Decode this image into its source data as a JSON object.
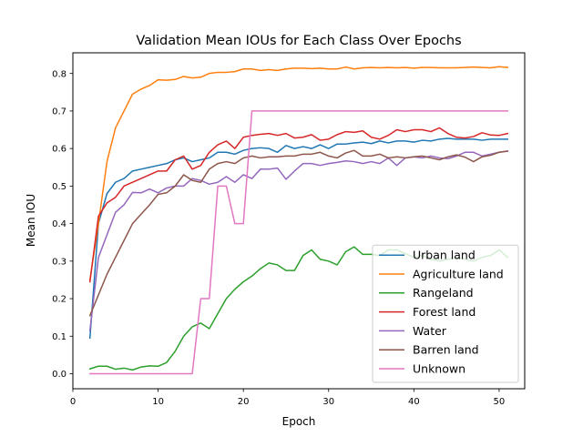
{
  "chart_data": {
    "type": "line",
    "title": "Validation Mean IOUs for Each Class Over Epochs",
    "xlabel": "Epoch",
    "ylabel": "Mean IOU",
    "xlim": [
      0,
      53
    ],
    "ylim": [
      -0.04,
      0.855
    ],
    "xticks": [
      "0",
      "10",
      "20",
      "30",
      "40",
      "50"
    ],
    "yticks": [
      "0.0",
      "0.1",
      "0.2",
      "0.3",
      "0.4",
      "0.5",
      "0.6",
      "0.7",
      "0.8"
    ],
    "grid": false,
    "legend_position": "lower-right",
    "x": [
      2,
      3,
      4,
      5,
      6,
      7,
      8,
      9,
      10,
      11,
      12,
      13,
      14,
      15,
      16,
      17,
      18,
      19,
      20,
      21,
      22,
      23,
      24,
      25,
      26,
      27,
      28,
      29,
      30,
      31,
      32,
      33,
      34,
      35,
      36,
      37,
      38,
      39,
      40,
      41,
      42,
      43,
      44,
      45,
      46,
      47,
      48,
      49,
      50,
      51
    ],
    "series": [
      {
        "name": "Urban land",
        "color": "#1f77b4",
        "values": [
          0.095,
          0.4,
          0.48,
          0.51,
          0.52,
          0.54,
          0.545,
          0.55,
          0.555,
          0.56,
          0.57,
          0.575,
          0.565,
          0.57,
          0.575,
          0.59,
          0.59,
          0.585,
          0.595,
          0.6,
          0.602,
          0.6,
          0.59,
          0.608,
          0.6,
          0.605,
          0.6,
          0.61,
          0.6,
          0.612,
          0.612,
          0.615,
          0.617,
          0.613,
          0.62,
          0.615,
          0.62,
          0.62,
          0.617,
          0.622,
          0.62,
          0.625,
          0.627,
          0.625,
          0.625,
          0.625,
          0.622,
          0.625,
          0.625,
          0.625
        ]
      },
      {
        "name": "Agriculture land",
        "color": "#ff7f0e",
        "values": [
          0.25,
          0.4,
          0.565,
          0.655,
          0.7,
          0.745,
          0.758,
          0.768,
          0.783,
          0.782,
          0.784,
          0.792,
          0.788,
          0.79,
          0.8,
          0.803,
          0.803,
          0.805,
          0.812,
          0.812,
          0.808,
          0.81,
          0.808,
          0.812,
          0.814,
          0.814,
          0.813,
          0.814,
          0.812,
          0.812,
          0.817,
          0.812,
          0.815,
          0.816,
          0.815,
          0.816,
          0.815,
          0.816,
          0.814,
          0.816,
          0.816,
          0.815,
          0.815,
          0.815,
          0.816,
          0.817,
          0.816,
          0.815,
          0.818,
          0.816
        ]
      },
      {
        "name": "Rangeland",
        "color": "#2ca02c",
        "values": [
          0.013,
          0.02,
          0.02,
          0.012,
          0.015,
          0.01,
          0.018,
          0.021,
          0.02,
          0.03,
          0.06,
          0.1,
          0.125,
          0.135,
          0.12,
          0.16,
          0.2,
          0.225,
          0.245,
          0.26,
          0.28,
          0.295,
          0.29,
          0.275,
          0.275,
          0.315,
          0.33,
          0.305,
          0.3,
          0.29,
          0.325,
          0.338,
          0.318,
          0.318,
          0.315,
          0.33,
          0.33,
          0.32,
          0.31,
          0.315,
          0.305,
          0.3,
          0.305,
          0.31,
          0.305,
          0.3,
          0.31,
          0.315,
          0.33,
          0.31
        ]
      },
      {
        "name": "Forest land",
        "color": "#d62728",
        "values": [
          0.245,
          0.42,
          0.455,
          0.47,
          0.5,
          0.51,
          0.52,
          0.53,
          0.54,
          0.54,
          0.57,
          0.58,
          0.545,
          0.555,
          0.59,
          0.61,
          0.62,
          0.6,
          0.63,
          0.635,
          0.638,
          0.64,
          0.635,
          0.64,
          0.628,
          0.63,
          0.637,
          0.622,
          0.625,
          0.637,
          0.645,
          0.643,
          0.647,
          0.63,
          0.625,
          0.635,
          0.65,
          0.645,
          0.65,
          0.65,
          0.645,
          0.655,
          0.64,
          0.63,
          0.628,
          0.632,
          0.642,
          0.636,
          0.635,
          0.64
        ]
      },
      {
        "name": "Water",
        "color": "#9467bd",
        "values": [
          0.115,
          0.31,
          0.37,
          0.43,
          0.45,
          0.483,
          0.482,
          0.492,
          0.482,
          0.495,
          0.5,
          0.5,
          0.52,
          0.515,
          0.505,
          0.51,
          0.525,
          0.51,
          0.53,
          0.52,
          0.545,
          0.545,
          0.548,
          0.518,
          0.54,
          0.56,
          0.56,
          0.555,
          0.56,
          0.563,
          0.567,
          0.565,
          0.56,
          0.565,
          0.56,
          0.575,
          0.555,
          0.575,
          0.578,
          0.575,
          0.58,
          0.575,
          0.573,
          0.58,
          0.59,
          0.59,
          0.58,
          0.585,
          0.59,
          0.593
        ]
      },
      {
        "name": "Barren land",
        "color": "#8c564b",
        "values": [
          0.155,
          0.21,
          0.265,
          0.31,
          0.355,
          0.4,
          0.425,
          0.45,
          0.478,
          0.482,
          0.5,
          0.53,
          0.515,
          0.51,
          0.545,
          0.56,
          0.565,
          0.56,
          0.575,
          0.58,
          0.575,
          0.578,
          0.578,
          0.58,
          0.58,
          0.585,
          0.585,
          0.59,
          0.58,
          0.575,
          0.588,
          0.595,
          0.58,
          0.58,
          0.585,
          0.575,
          0.578,
          0.575,
          0.578,
          0.58,
          0.575,
          0.57,
          0.578,
          0.583,
          0.577,
          0.565,
          0.578,
          0.582,
          0.59,
          0.593
        ]
      },
      {
        "name": "Unknown",
        "color": "#e377c2",
        "values": [
          0,
          0,
          0,
          0,
          0,
          0,
          0,
          0,
          0,
          0,
          0,
          0,
          0,
          0.2,
          0.2,
          0.5,
          0.5,
          0.4,
          0.4,
          0.7,
          0.7,
          0.7,
          0.7,
          0.7,
          0.7,
          0.7,
          0.7,
          0.7,
          0.7,
          0.7,
          0.7,
          0.7,
          0.7,
          0.7,
          0.7,
          0.7,
          0.7,
          0.7,
          0.7,
          0.7,
          0.7,
          0.7,
          0.7,
          0.7,
          0.7,
          0.7,
          0.7,
          0.7,
          0.7,
          0.7
        ]
      }
    ]
  }
}
